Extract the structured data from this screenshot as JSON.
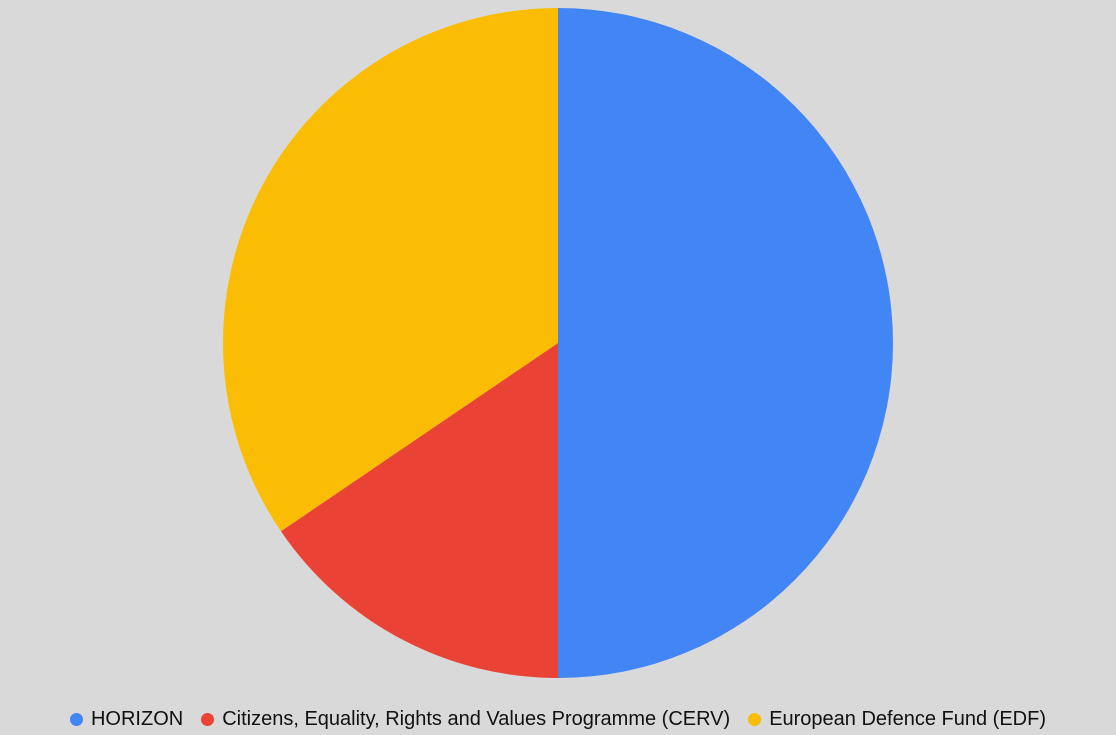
{
  "chart_data": {
    "type": "pie",
    "title": "",
    "legend_position": "bottom",
    "start_angle": "12 o'clock, clockwise",
    "slices": [
      {
        "label": "HORIZON",
        "value": 50.0,
        "color": "#4285f4"
      },
      {
        "label": "Citizens, Equality, Rights and Values Programme (CERV)",
        "value": 15.5,
        "color": "#ea4335"
      },
      {
        "label": "European Defence Fund (EDF)",
        "value": 34.5,
        "color": "#fbbc04"
      }
    ]
  },
  "background_color": "#d9d9d9"
}
